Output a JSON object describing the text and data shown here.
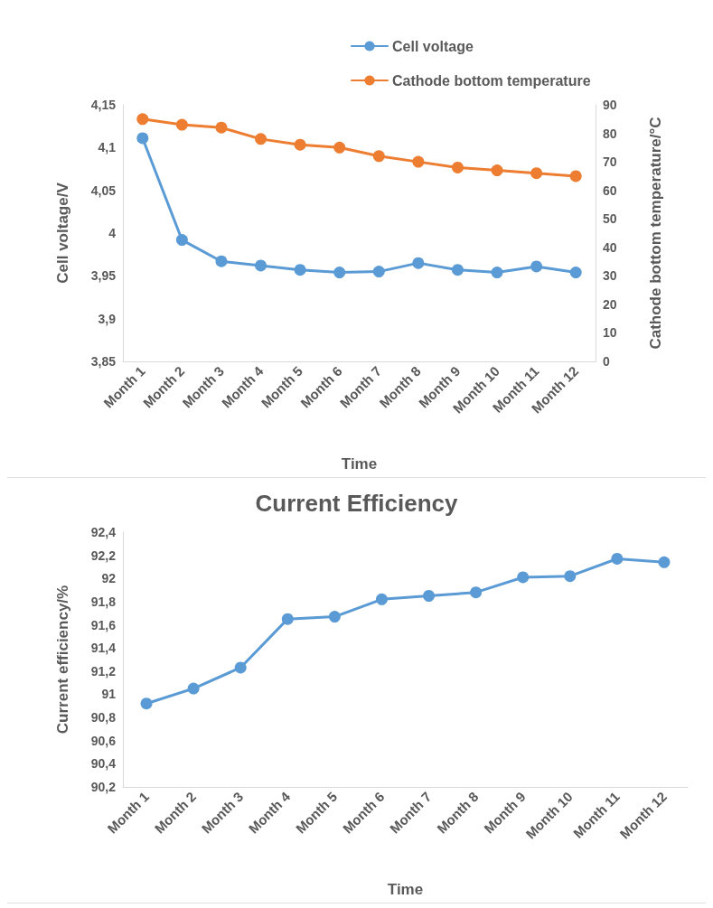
{
  "chart_data": [
    {
      "type": "line",
      "xlabel": "Time",
      "ylabel": "Cell voltage/V",
      "y2label": "Cathode bottom temperature/°C",
      "categories": [
        "Month 1",
        "Month 2",
        "Month 3",
        "Month 4",
        "Month 5",
        "Month 6",
        "Month 7",
        "Month 8",
        "Month 9",
        "Month 10",
        "Month 11",
        "Month 12"
      ],
      "series": [
        {
          "name": "Cell voltage",
          "color": "#5b9bd5",
          "values": [
            4.111,
            3.992,
            3.967,
            3.962,
            3.957,
            3.954,
            3.955,
            3.965,
            3.957,
            3.954,
            3.961,
            3.954
          ]
        },
        {
          "name": "Cathode bottom temperature",
          "color": "#ed7d31",
          "axis": "y2",
          "values": [
            85,
            83,
            82,
            78,
            76,
            75,
            72,
            70,
            68,
            67,
            66,
            65
          ]
        }
      ],
      "ylim": [
        3.85,
        4.15
      ],
      "yticks": [
        {
          "value": 3.85,
          "label": "3,85"
        },
        {
          "value": 3.9,
          "label": "3,9"
        },
        {
          "value": 3.95,
          "label": "3,95"
        },
        {
          "value": 4,
          "label": "4"
        },
        {
          "value": 4.05,
          "label": "4,05"
        },
        {
          "value": 4.1,
          "label": "4,1"
        },
        {
          "value": 4.15,
          "label": "4,15"
        }
      ],
      "y2lim": [
        0,
        90
      ],
      "y2ticks": [
        0,
        10,
        20,
        30,
        40,
        50,
        60,
        70,
        80,
        90
      ],
      "grid": false,
      "legend": "top right",
      "marker": "circle",
      "line_style": "solid"
    },
    {
      "type": "line",
      "title": "Current Efficiency",
      "xlabel": "Time",
      "ylabel": "Current efficiency/%",
      "categories": [
        "Month 1",
        "Month 2",
        "Month 3",
        "Month 4",
        "Month 5",
        "Month 6",
        "Month 7",
        "Month 8",
        "Month 9",
        "Month 10",
        "Month 11",
        "Month 12"
      ],
      "series": [
        {
          "color": "#5b9bd5",
          "values": [
            90.92,
            91.05,
            91.23,
            91.65,
            91.67,
            91.82,
            91.85,
            91.88,
            92.01,
            92.02,
            92.17,
            92.14
          ]
        }
      ],
      "ylim": [
        90.2,
        92.4
      ],
      "yticks": [
        {
          "value": 90.2,
          "label": "90,2"
        },
        {
          "value": 90.4,
          "label": "90,4"
        },
        {
          "value": 90.6,
          "label": "90,6"
        },
        {
          "value": 90.8,
          "label": "90,8"
        },
        {
          "value": 91,
          "label": "91"
        },
        {
          "value": 91.2,
          "label": "91,2"
        },
        {
          "value": 91.4,
          "label": "91,4"
        },
        {
          "value": 91.6,
          "label": "91,6"
        },
        {
          "value": 91.8,
          "label": "91,8"
        },
        {
          "value": 92,
          "label": "92"
        },
        {
          "value": 92.2,
          "label": "92,2"
        },
        {
          "value": 92.4,
          "label": "92,4"
        }
      ],
      "grid": false,
      "marker": "circle",
      "line_style": "solid"
    }
  ]
}
